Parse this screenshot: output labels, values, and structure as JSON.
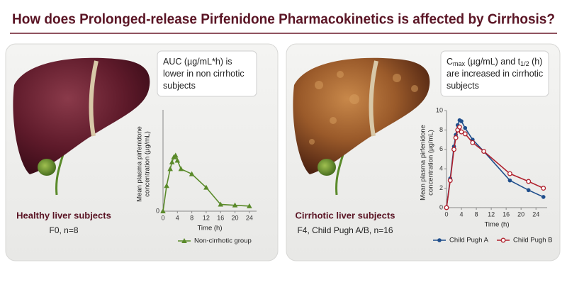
{
  "header": {
    "title": "How does Prolonged-release Pirfenidone Pharmacokinetics is affected by Cirrhosis?"
  },
  "panels": [
    {
      "callout": [
        [
          {
            "text": "AUC (µg/mL*h) is"
          }
        ],
        [
          {
            "text": "lower in non cirrhotic"
          }
        ],
        [
          {
            "text": "subjects"
          }
        ]
      ],
      "caption": "Healthy liver subjects",
      "subcaption": "F0, n=8"
    },
    {
      "callout": [
        [
          {
            "text": "C"
          },
          {
            "text": "max",
            "sub": true
          },
          {
            "text": " (µg/mL) and t"
          },
          {
            "text": "1/2",
            "sub": true
          },
          {
            "text": " (h)"
          }
        ],
        [
          {
            "text": "are increased in cirrhotic"
          }
        ],
        [
          {
            "text": "subjects"
          }
        ]
      ],
      "caption": "Cirrhotic liver subjects",
      "subcaption": "F4, Child Pugh A/B, n=16"
    }
  ],
  "chart_data": [
    {
      "type": "line",
      "xlabel": "Time (h)",
      "ylabel": [
        "Mean plasma pirfenidone",
        "concentration (µg/mL)"
      ],
      "x": [
        0,
        1,
        2,
        2.5,
        3,
        3.5,
        4,
        5,
        8,
        12,
        16,
        20,
        24
      ],
      "series": [
        {
          "name": "Non-cirrhotic group",
          "color": "#5a8a2a",
          "marker": "triangle",
          "values": [
            0,
            1.5,
            2.5,
            2.9,
            3.2,
            3.3,
            3.0,
            2.5,
            2.2,
            1.4,
            0.4,
            0.35,
            0.3
          ]
        }
      ],
      "xlim": [
        0,
        26
      ],
      "xticks": [
        0,
        4,
        8,
        12,
        16,
        20,
        24
      ],
      "ylim": [
        0,
        6
      ],
      "yticks": [
        0
      ]
    },
    {
      "type": "line",
      "xlabel": "Time (h)",
      "ylabel": [
        "Mean plasma pirfenidone",
        "concentration (µg/mL)"
      ],
      "x": [
        0,
        1,
        2,
        2.5,
        3,
        3.5,
        4,
        5,
        7,
        10,
        17,
        22,
        26
      ],
      "series": [
        {
          "name": "Child Pugh A",
          "color": "#1f4e8c",
          "marker": "circle",
          "values": [
            0,
            3,
            6.3,
            7.5,
            8.5,
            9,
            8.9,
            8.2,
            7,
            5.8,
            2.8,
            1.8,
            1.1
          ]
        },
        {
          "name": "Child Pugh B",
          "color": "#b0222e",
          "marker": "open-circle",
          "values": [
            0,
            2.8,
            6,
            7.2,
            8,
            8.3,
            7.8,
            7.6,
            6.7,
            5.8,
            3.5,
            2.7,
            2.0
          ]
        }
      ],
      "xlim": [
        0,
        27
      ],
      "xticks": [
        0,
        4,
        8,
        12,
        16,
        20,
        24
      ],
      "ylim": [
        0,
        10
      ],
      "yticks": [
        0,
        2,
        4,
        6,
        8,
        10
      ]
    }
  ]
}
